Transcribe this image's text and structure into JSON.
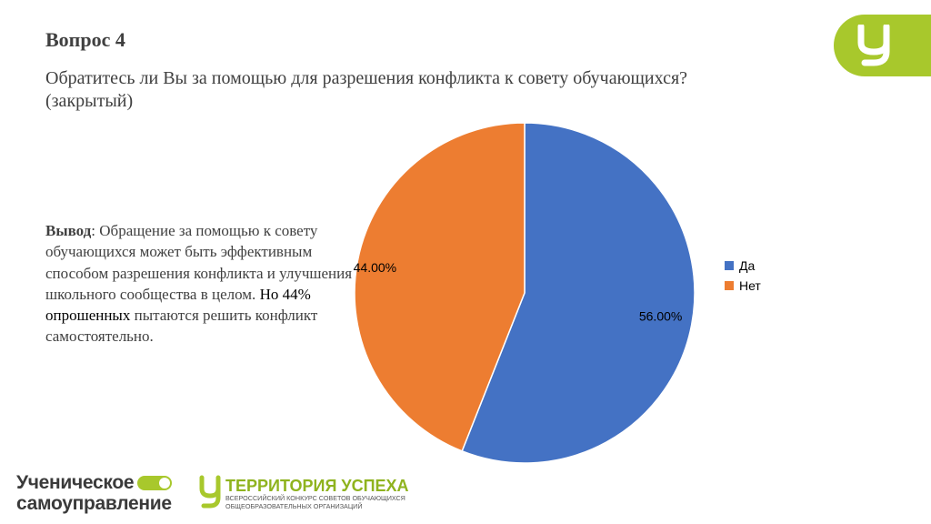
{
  "header": {
    "title": "Вопрос 4",
    "question": "Обратитесь ли Вы за помощью для разрешения конфликта к совету обучающихся? (закрытый)"
  },
  "conclusion": {
    "label": "Вывод",
    "text_part1": ": Обращение за помощью к совету обучающихся  может быть эффективным способом разрешения конфликта и улучшения школьного сообщества в целом. ",
    "highlight": "Но 44% опрошенных",
    "text_part2": " пытаются решить конфликт самостоятельно."
  },
  "chart_data": {
    "type": "pie",
    "slices": [
      {
        "label": "Да",
        "value": 56,
        "display": "56.00%",
        "color": "#4472c4"
      },
      {
        "label": "Нет",
        "value": 44,
        "display": "44.00%",
        "color": "#ed7d31"
      }
    ],
    "start_angle": "12 o'clock",
    "direction": "clockwise",
    "legend_position": "right"
  },
  "footer": {
    "left_brand": {
      "line1": "Ученическое",
      "line2": "самоуправление"
    },
    "right_brand": {
      "title": "ТЕРРИТОРИЯ УСПЕХА",
      "subtitle_line1": "ВСЕРОССИЙСКИЙ КОНКУРС СОВЕТОВ ОБУЧАЮЩИХСЯ",
      "subtitle_line2": "ОБЩЕОБРАЗОВАТЕЛЬНЫХ ОРГАНИЗАЦИЙ"
    }
  },
  "colors": {
    "accent": "#a8c82c",
    "text": "#404040"
  }
}
